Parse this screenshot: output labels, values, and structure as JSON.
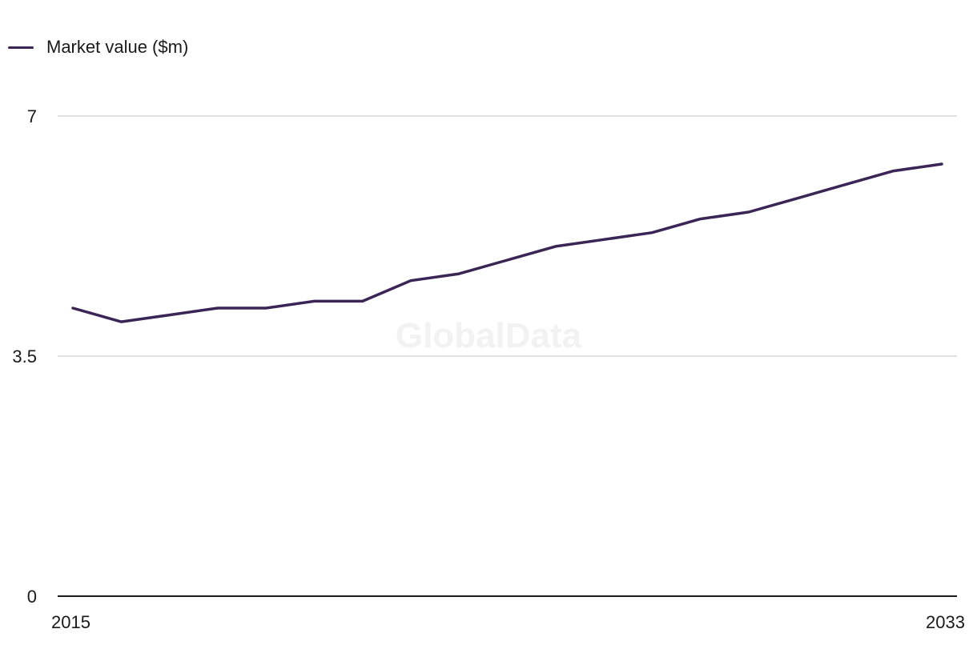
{
  "chart_data": {
    "type": "line",
    "x": [
      2015,
      2016,
      2017,
      2018,
      2019,
      2020,
      2021,
      2022,
      2023,
      2024,
      2025,
      2026,
      2027,
      2028,
      2029,
      2030,
      2031,
      2032,
      2033
    ],
    "series": [
      {
        "name": "Market value ($m)",
        "color": "#3a2556",
        "values": [
          4.2,
          4.0,
          4.1,
          4.2,
          4.2,
          4.3,
          4.3,
          4.6,
          4.7,
          4.9,
          5.1,
          5.2,
          5.3,
          5.5,
          5.6,
          5.8,
          6.0,
          6.2,
          6.3
        ]
      }
    ],
    "ylim": [
      0,
      7
    ],
    "y_ticks": [
      "0",
      "3.5",
      "7"
    ],
    "x_tick_labels": [
      "2015",
      "2033"
    ],
    "grid": true,
    "legend": "top-left",
    "watermark": "GlobalData"
  }
}
